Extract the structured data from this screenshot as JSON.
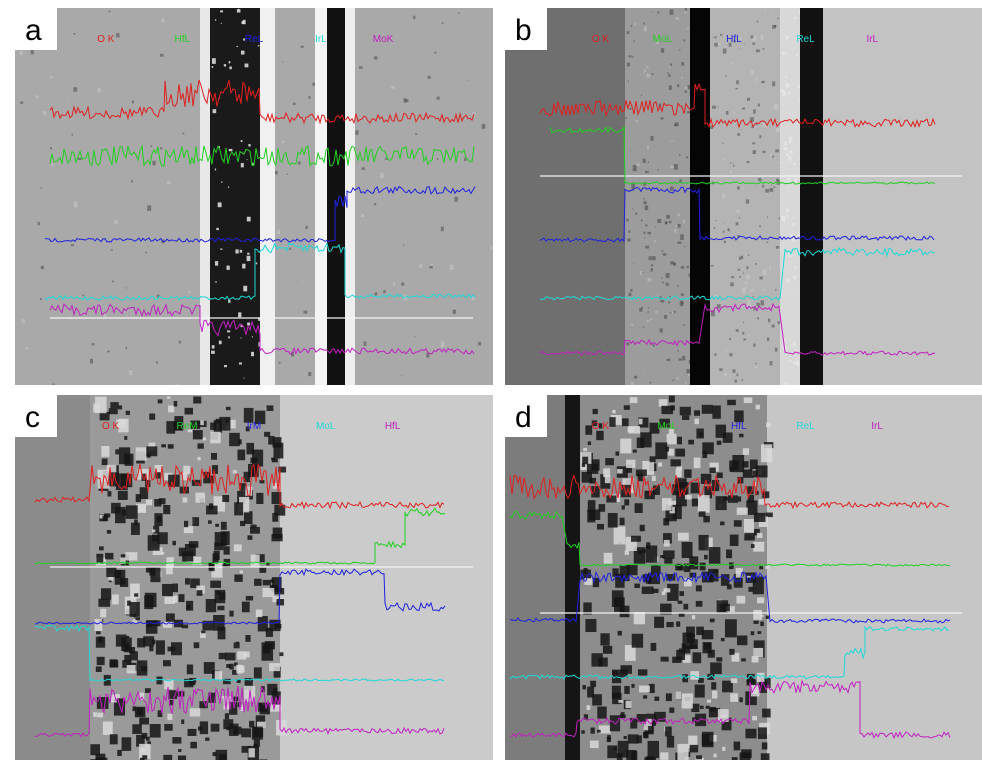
{
  "panels": [
    {
      "label": "a",
      "signals": [
        "O K",
        "HfL",
        "ReL",
        "IrL",
        "MoK"
      ]
    },
    {
      "label": "b",
      "signals": [
        "O K",
        "MoL",
        "HfL",
        "ReL",
        "IrL"
      ]
    },
    {
      "label": "c",
      "signals": [
        "O K",
        "ReM",
        "IrM",
        "MoL",
        "HfL"
      ]
    },
    {
      "label": "d",
      "signals": [
        "O K",
        "MoL",
        "HfL",
        "ReL",
        "IrL"
      ]
    }
  ]
}
